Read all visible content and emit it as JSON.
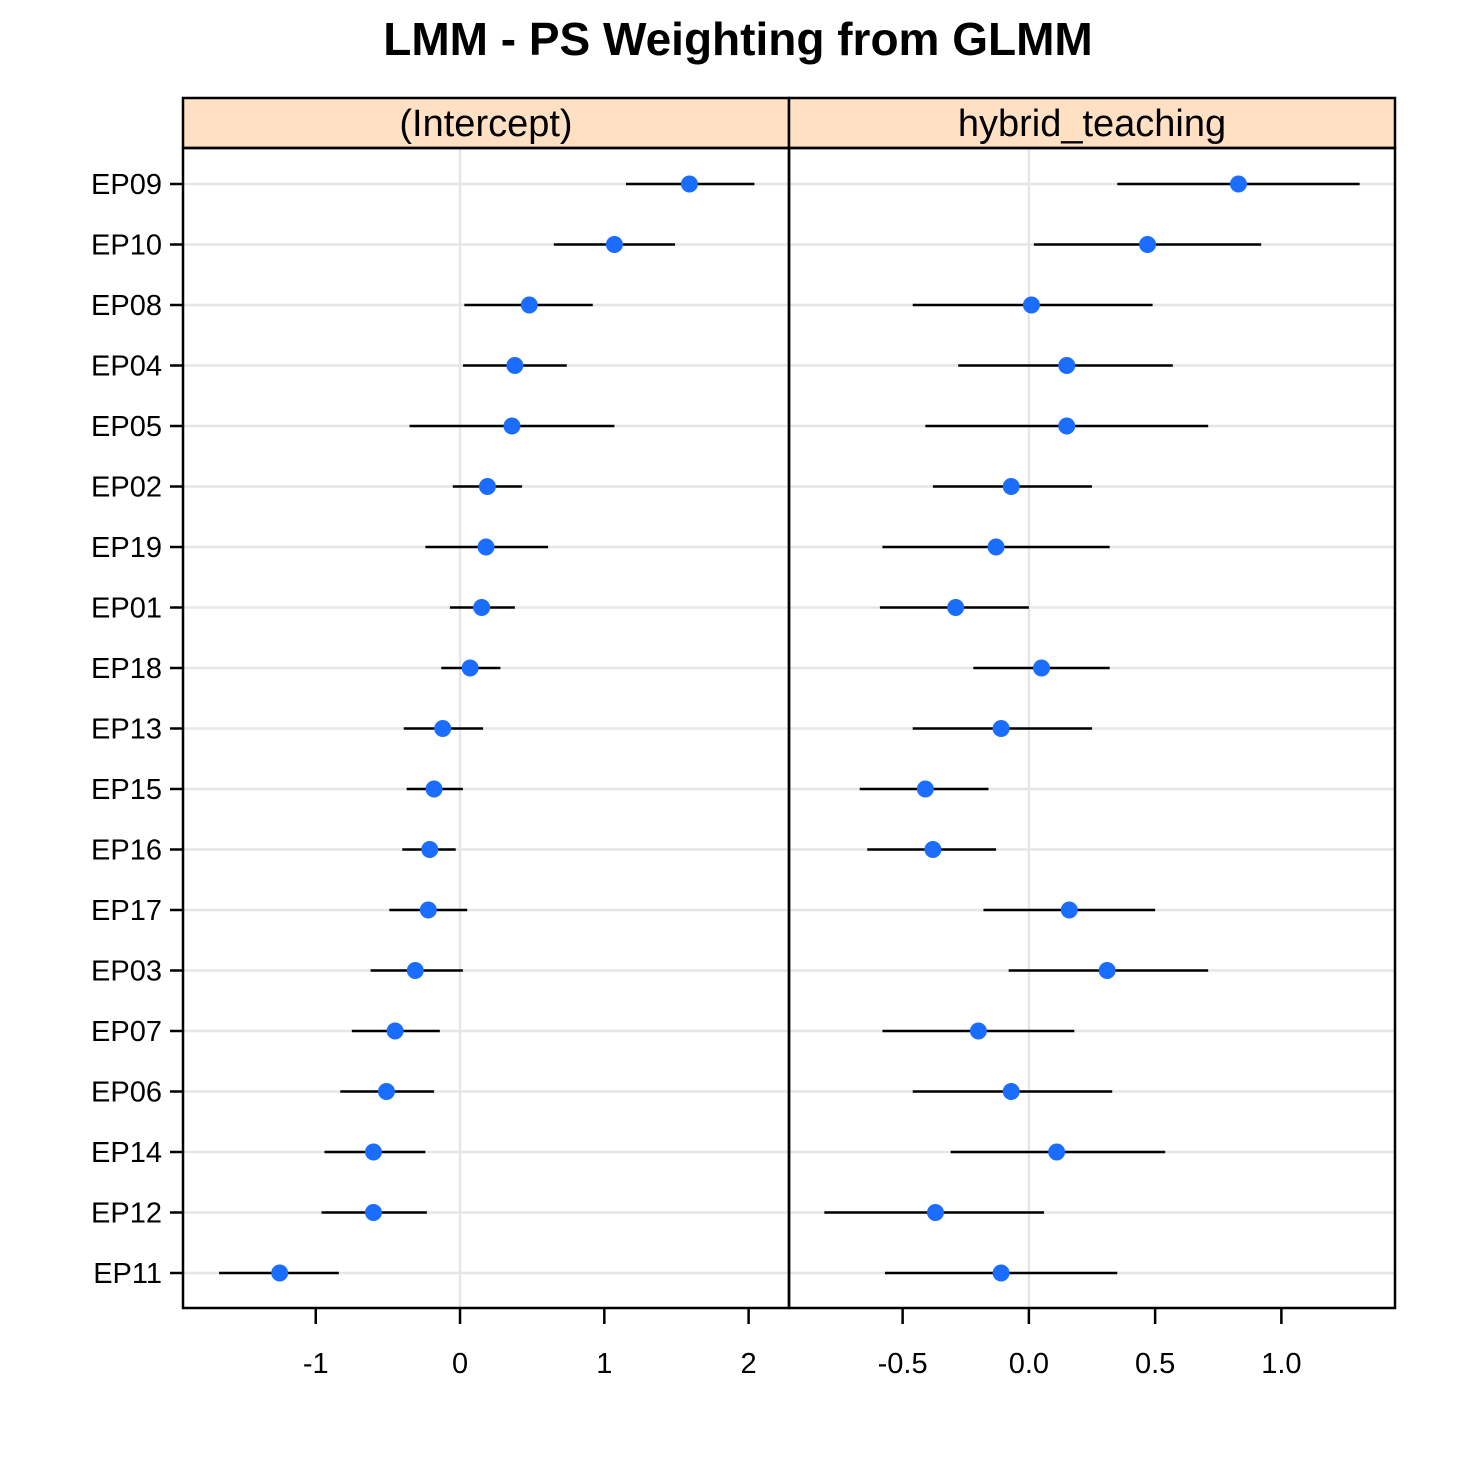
{
  "chart_data": {
    "type": "dotplot",
    "title": "LMM - PS Weighting from GLMM",
    "categories": [
      "EP09",
      "EP10",
      "EP08",
      "EP04",
      "EP05",
      "EP02",
      "EP19",
      "EP01",
      "EP18",
      "EP13",
      "EP15",
      "EP16",
      "EP17",
      "EP03",
      "EP07",
      "EP06",
      "EP14",
      "EP12",
      "EP11"
    ],
    "panels": [
      {
        "name": "(Intercept)",
        "xlim": [
          -1.92,
          2.28
        ],
        "ticks": [
          -1,
          0,
          1,
          2
        ],
        "tick_labels": [
          "-1",
          "0",
          "1",
          "2"
        ],
        "points": [
          {
            "est": 1.59,
            "lo": 1.15,
            "hi": 2.04
          },
          {
            "est": 1.07,
            "lo": 0.65,
            "hi": 1.49
          },
          {
            "est": 0.48,
            "lo": 0.03,
            "hi": 0.92
          },
          {
            "est": 0.38,
            "lo": 0.02,
            "hi": 0.74
          },
          {
            "est": 0.36,
            "lo": -0.35,
            "hi": 1.07
          },
          {
            "est": 0.19,
            "lo": -0.05,
            "hi": 0.43
          },
          {
            "est": 0.18,
            "lo": -0.24,
            "hi": 0.61
          },
          {
            "est": 0.15,
            "lo": -0.07,
            "hi": 0.38
          },
          {
            "est": 0.07,
            "lo": -0.13,
            "hi": 0.28
          },
          {
            "est": -0.12,
            "lo": -0.39,
            "hi": 0.16
          },
          {
            "est": -0.18,
            "lo": -0.37,
            "hi": 0.02
          },
          {
            "est": -0.21,
            "lo": -0.4,
            "hi": -0.03
          },
          {
            "est": -0.22,
            "lo": -0.49,
            "hi": 0.05
          },
          {
            "est": -0.31,
            "lo": -0.62,
            "hi": 0.02
          },
          {
            "est": -0.45,
            "lo": -0.75,
            "hi": -0.14
          },
          {
            "est": -0.51,
            "lo": -0.83,
            "hi": -0.18
          },
          {
            "est": -0.6,
            "lo": -0.94,
            "hi": -0.24
          },
          {
            "est": -0.6,
            "lo": -0.96,
            "hi": -0.23
          },
          {
            "est": -1.25,
            "lo": -1.67,
            "hi": -0.84
          }
        ]
      },
      {
        "name": "hybrid_teaching",
        "xlim": [
          -0.95,
          1.45
        ],
        "ticks": [
          -0.5,
          0.0,
          0.5,
          1.0
        ],
        "tick_labels": [
          "-0.5",
          "0.0",
          "0.5",
          "1.0"
        ],
        "points": [
          {
            "est": 0.83,
            "lo": 0.35,
            "hi": 1.31
          },
          {
            "est": 0.47,
            "lo": 0.02,
            "hi": 0.92
          },
          {
            "est": 0.01,
            "lo": -0.46,
            "hi": 0.49
          },
          {
            "est": 0.15,
            "lo": -0.28,
            "hi": 0.57
          },
          {
            "est": 0.15,
            "lo": -0.41,
            "hi": 0.71
          },
          {
            "est": -0.07,
            "lo": -0.38,
            "hi": 0.25
          },
          {
            "est": -0.13,
            "lo": -0.58,
            "hi": 0.32
          },
          {
            "est": -0.29,
            "lo": -0.59,
            "hi": 0.0
          },
          {
            "est": 0.05,
            "lo": -0.22,
            "hi": 0.32
          },
          {
            "est": -0.11,
            "lo": -0.46,
            "hi": 0.25
          },
          {
            "est": -0.41,
            "lo": -0.67,
            "hi": -0.16
          },
          {
            "est": -0.38,
            "lo": -0.64,
            "hi": -0.13
          },
          {
            "est": 0.16,
            "lo": -0.18,
            "hi": 0.5
          },
          {
            "est": 0.31,
            "lo": -0.08,
            "hi": 0.71
          },
          {
            "est": -0.2,
            "lo": -0.58,
            "hi": 0.18
          },
          {
            "est": -0.07,
            "lo": -0.46,
            "hi": 0.33
          },
          {
            "est": 0.11,
            "lo": -0.31,
            "hi": 0.54
          },
          {
            "est": -0.37,
            "lo": -0.81,
            "hi": 0.06
          },
          {
            "est": -0.11,
            "lo": -0.57,
            "hi": 0.35
          }
        ]
      }
    ],
    "colors": {
      "point": "#1a6dff",
      "ci_line": "#000000",
      "grid": "#e6e6e6",
      "strip": "#ffe0c3"
    },
    "grid": true
  }
}
